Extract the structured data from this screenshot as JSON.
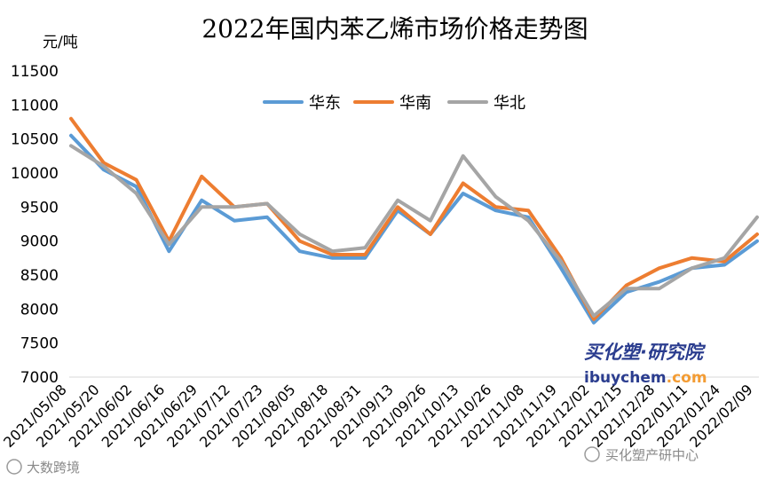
{
  "chart_data": {
    "type": "line",
    "title": "2022年国内苯乙烯市场价格走势图",
    "unit_label": "元/吨",
    "xlabel": "",
    "ylabel": "元/吨",
    "ylim": [
      7000,
      11500
    ],
    "yticks": [
      7000,
      7500,
      8000,
      8500,
      9000,
      9500,
      10000,
      10500,
      11000,
      11500
    ],
    "grid": false,
    "legend_position": "top-center",
    "categories": [
      "2021/05/08",
      "2021/05/20",
      "2021/06/02",
      "2021/06/16",
      "2021/06/29",
      "2021/07/12",
      "2021/07/23",
      "2021/08/05",
      "2021/08/18",
      "2021/08/31",
      "2021/09/13",
      "2021/09/26",
      "2021/10/13",
      "2021/10/26",
      "2021/11/08",
      "2021/11/19",
      "2021/12/02",
      "2021/12/15",
      "2021/12/28",
      "2022/01/11",
      "2022/01/24",
      "2022/02/09"
    ],
    "series": [
      {
        "name": "华东",
        "color": "#5b9bd5",
        "values": [
          10550,
          10050,
          9800,
          8850,
          9600,
          9300,
          9350,
          8850,
          8750,
          8750,
          9450,
          9100,
          9700,
          9450,
          9350,
          8600,
          7800,
          8250,
          8400,
          8600,
          8650,
          9000
        ]
      },
      {
        "name": "华南",
        "color": "#ed7d31",
        "values": [
          10800,
          10150,
          9900,
          9000,
          9950,
          9500,
          9550,
          9000,
          8800,
          8800,
          9500,
          9100,
          9850,
          9500,
          9450,
          8750,
          7850,
          8350,
          8600,
          8750,
          8700,
          9100
        ]
      },
      {
        "name": "华北",
        "color": "#a5a5a5",
        "values": [
          10400,
          10100,
          9700,
          8950,
          9500,
          9500,
          9550,
          9100,
          8850,
          8900,
          9600,
          9300,
          10250,
          9650,
          9300,
          8700,
          7900,
          8300,
          8300,
          8600,
          8750,
          9350
        ]
      }
    ]
  },
  "watermark": {
    "brand_cn": "买化塑·研究院",
    "brand_url_left": "ibuychem",
    "brand_url_right": ".com",
    "credit_left": "大数跨境",
    "credit_right": "买化塑产研中心"
  }
}
